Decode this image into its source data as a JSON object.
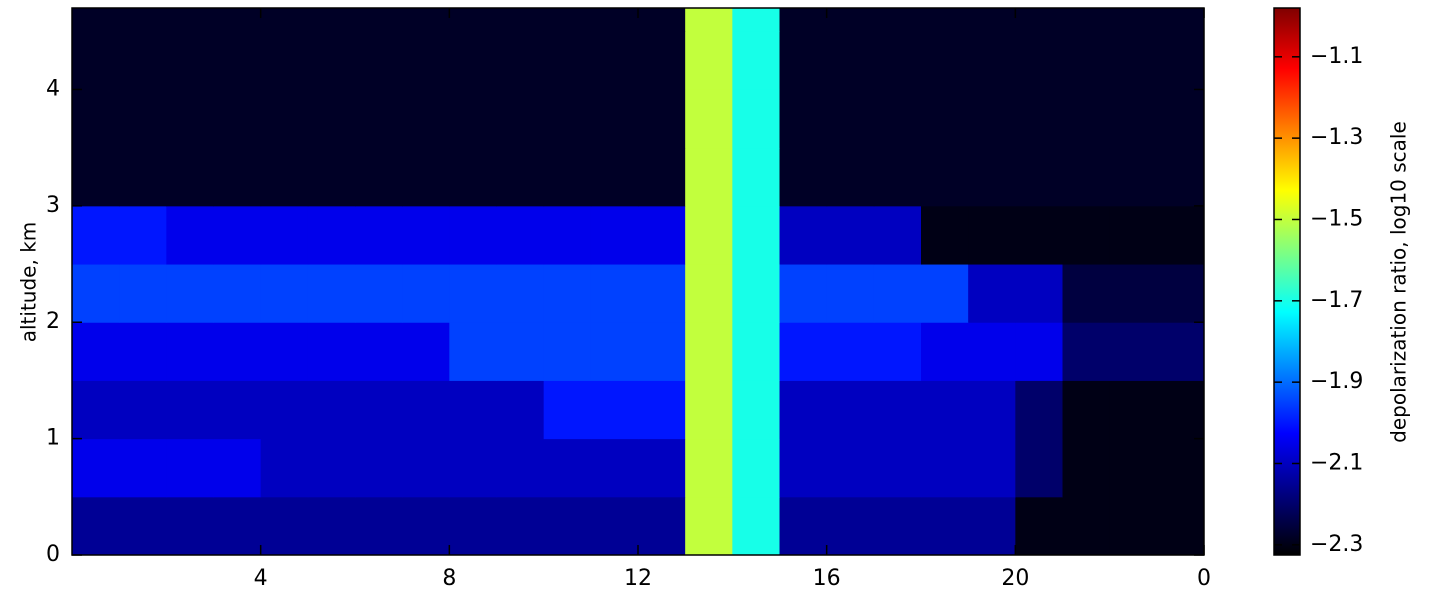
{
  "chart_data": {
    "type": "heatmap",
    "ylabel": "altitude, km",
    "colorbar_label": "depolarization ratio, log10 scale",
    "colormap": [
      "#000000",
      "#00007f",
      "#0000ff",
      "#0080ff",
      "#00ffff",
      "#80ff80",
      "#ffff00",
      "#ff8000",
      "#ff0000",
      "#800000"
    ],
    "xlim": [
      0,
      24
    ],
    "ylim": [
      0,
      4.7
    ],
    "clim": [
      -2.325,
      -0.98
    ],
    "xticks": [
      4,
      8,
      12,
      16,
      20,
      {
        "value": 24,
        "label": "0"
      }
    ],
    "yticks": [
      0,
      1,
      2,
      3,
      4
    ],
    "cticks": [
      {
        "value": -2.3,
        "label": "−2.3"
      },
      {
        "value": -2.1,
        "label": "−2.1"
      },
      {
        "value": -1.9,
        "label": "−1.9"
      },
      {
        "value": -1.7,
        "label": "−1.7"
      },
      {
        "value": -1.5,
        "label": "−1.5"
      },
      {
        "value": -1.3,
        "label": "−1.3"
      },
      {
        "value": -1.1,
        "label": "−1.1"
      }
    ],
    "xbins": [
      0,
      1,
      2,
      3,
      4,
      5,
      6,
      7,
      8,
      9,
      10,
      11,
      12,
      13,
      14,
      15,
      16,
      17,
      18,
      19,
      20,
      21,
      22,
      23,
      24
    ],
    "ybins": [
      0,
      0.5,
      1,
      1.5,
      2,
      2.5,
      3,
      3.5,
      4,
      4.5,
      4.7
    ],
    "z": [
      [
        -2.15,
        -2.15,
        -2.15,
        -2.15,
        -2.15,
        -2.15,
        -2.15,
        -2.15,
        -2.15,
        -2.15,
        -2.15,
        -2.15,
        -2.15,
        -1.5,
        -1.7,
        -2.15,
        -2.15,
        -2.15,
        -2.15,
        -2.15,
        -2.3,
        -2.3,
        -2.3,
        -2.3
      ],
      [
        -2.05,
        -2.05,
        -2.05,
        -2.05,
        -2.1,
        -2.1,
        -2.1,
        -2.1,
        -2.1,
        -2.1,
        -2.1,
        -2.1,
        -2.1,
        -1.5,
        -1.7,
        -2.1,
        -2.1,
        -2.1,
        -2.1,
        -2.1,
        -2.2,
        -2.3,
        -2.3,
        -2.3
      ],
      [
        -2.1,
        -2.1,
        -2.1,
        -2.1,
        -2.1,
        -2.1,
        -2.1,
        -2.1,
        -2.1,
        -2.1,
        -2.0,
        -2.0,
        -2.0,
        -1.5,
        -1.7,
        -2.1,
        -2.1,
        -2.1,
        -2.1,
        -2.1,
        -2.2,
        -2.3,
        -2.3,
        -2.3
      ],
      [
        -2.05,
        -2.05,
        -2.05,
        -2.05,
        -2.05,
        -2.05,
        -2.05,
        -2.05,
        -1.95,
        -1.95,
        -1.95,
        -1.95,
        -1.95,
        -1.5,
        -1.7,
        -2.0,
        -2.0,
        -2.0,
        -2.05,
        -2.05,
        -2.05,
        -2.2,
        -2.2,
        -2.2
      ],
      [
        -1.95,
        -1.95,
        -1.95,
        -1.95,
        -1.95,
        -1.95,
        -1.95,
        -1.95,
        -1.95,
        -1.95,
        -1.95,
        -1.95,
        -1.95,
        -1.5,
        -1.7,
        -1.95,
        -1.95,
        -1.95,
        -1.95,
        -2.1,
        -2.1,
        -2.25,
        -2.25,
        -2.25
      ],
      [
        -2.0,
        -2.0,
        -2.05,
        -2.05,
        -2.05,
        -2.05,
        -2.05,
        -2.05,
        -2.05,
        -2.05,
        -2.05,
        -2.05,
        -2.05,
        -1.5,
        -1.7,
        -2.1,
        -2.1,
        -2.1,
        -2.3,
        -2.3,
        -2.3,
        -2.3,
        -2.3,
        -2.3
      ],
      [
        -2.28,
        -2.28,
        -2.28,
        -2.28,
        -2.28,
        -2.28,
        -2.28,
        -2.28,
        -2.28,
        -2.28,
        -2.28,
        -2.28,
        -2.28,
        -1.5,
        -1.7,
        -2.28,
        -2.28,
        -2.28,
        -2.28,
        -2.28,
        -2.28,
        -2.28,
        -2.28,
        -2.28
      ],
      [
        -2.28,
        -2.28,
        -2.28,
        -2.28,
        -2.28,
        -2.28,
        -2.28,
        -2.28,
        -2.28,
        -2.28,
        -2.28,
        -2.28,
        -2.28,
        -1.5,
        -1.7,
        -2.28,
        -2.28,
        -2.28,
        -2.28,
        -2.28,
        -2.28,
        -2.28,
        -2.28,
        -2.28
      ],
      [
        -2.28,
        -2.28,
        -2.28,
        -2.28,
        -2.28,
        -2.28,
        -2.28,
        -2.28,
        -2.28,
        -2.28,
        -2.28,
        -2.28,
        -2.28,
        -1.5,
        -1.7,
        -2.28,
        -2.28,
        -2.28,
        -2.28,
        -2.28,
        -2.28,
        -2.28,
        -2.28,
        -2.28
      ],
      [
        -2.28,
        -2.28,
        -2.28,
        -2.28,
        -2.28,
        -2.28,
        -2.28,
        -2.28,
        -2.28,
        -2.28,
        -2.28,
        -2.28,
        -2.28,
        -1.5,
        -1.7,
        -2.28,
        -2.28,
        -2.28,
        -2.28,
        -2.28,
        -2.28,
        -2.28,
        -2.28,
        -2.28
      ]
    ]
  }
}
